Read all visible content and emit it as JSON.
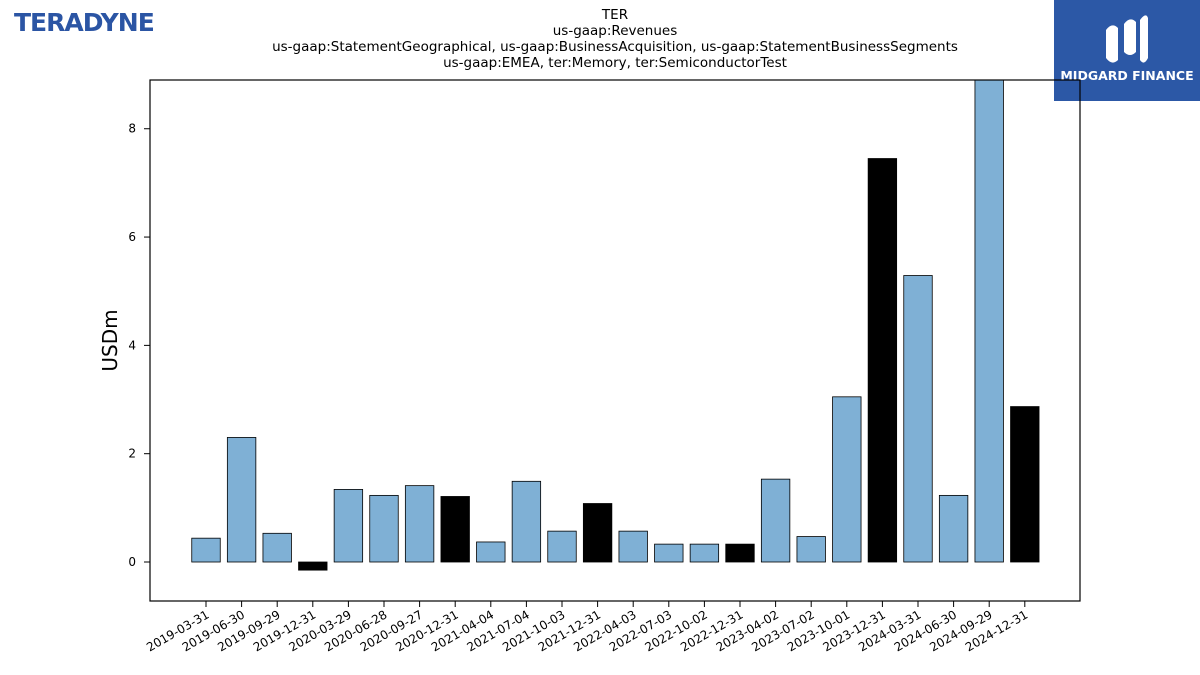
{
  "logos": {
    "left_text": "TERADYNE",
    "right_text": "MIDGARD FINANCE",
    "right_bg": "#2c58a6"
  },
  "chart_data": {
    "type": "bar",
    "title_lines": [
      "TER",
      "us-gaap:Revenues",
      "us-gaap:StatementGeographical, us-gaap:BusinessAcquisition, us-gaap:StatementBusinessSegments",
      "us-gaap:EMEA, ter:Memory, ter:SemiconductorTest"
    ],
    "ylabel": "USDm",
    "xlabel": "",
    "ylim": [
      -0.72,
      8.9
    ],
    "yticks": [
      0,
      2,
      4,
      6,
      8
    ],
    "grid": false,
    "colors": {
      "default": "#7fb0d5",
      "q4": "#000000"
    },
    "categories": [
      "2019-03-31",
      "2019-06-30",
      "2019-09-29",
      "2019-12-31",
      "2020-03-29",
      "2020-06-28",
      "2020-09-27",
      "2020-12-31",
      "2021-04-04",
      "2021-07-04",
      "2021-10-03",
      "2021-12-31",
      "2022-04-03",
      "2022-07-03",
      "2022-10-02",
      "2022-12-31",
      "2023-04-02",
      "2023-07-02",
      "2023-10-01",
      "2023-12-31",
      "2024-03-31",
      "2024-06-30",
      "2024-09-29",
      "2024-12-31"
    ],
    "values": [
      0.44,
      2.3,
      0.53,
      -0.15,
      1.34,
      1.23,
      1.41,
      1.21,
      0.37,
      1.49,
      0.57,
      1.08,
      0.57,
      0.33,
      0.33,
      0.33,
      1.53,
      0.47,
      3.05,
      7.45,
      5.29,
      1.23,
      8.9,
      2.87
    ],
    "highlight": [
      false,
      false,
      false,
      true,
      false,
      false,
      false,
      true,
      false,
      false,
      false,
      true,
      false,
      false,
      false,
      true,
      false,
      false,
      false,
      true,
      false,
      false,
      false,
      true
    ]
  }
}
